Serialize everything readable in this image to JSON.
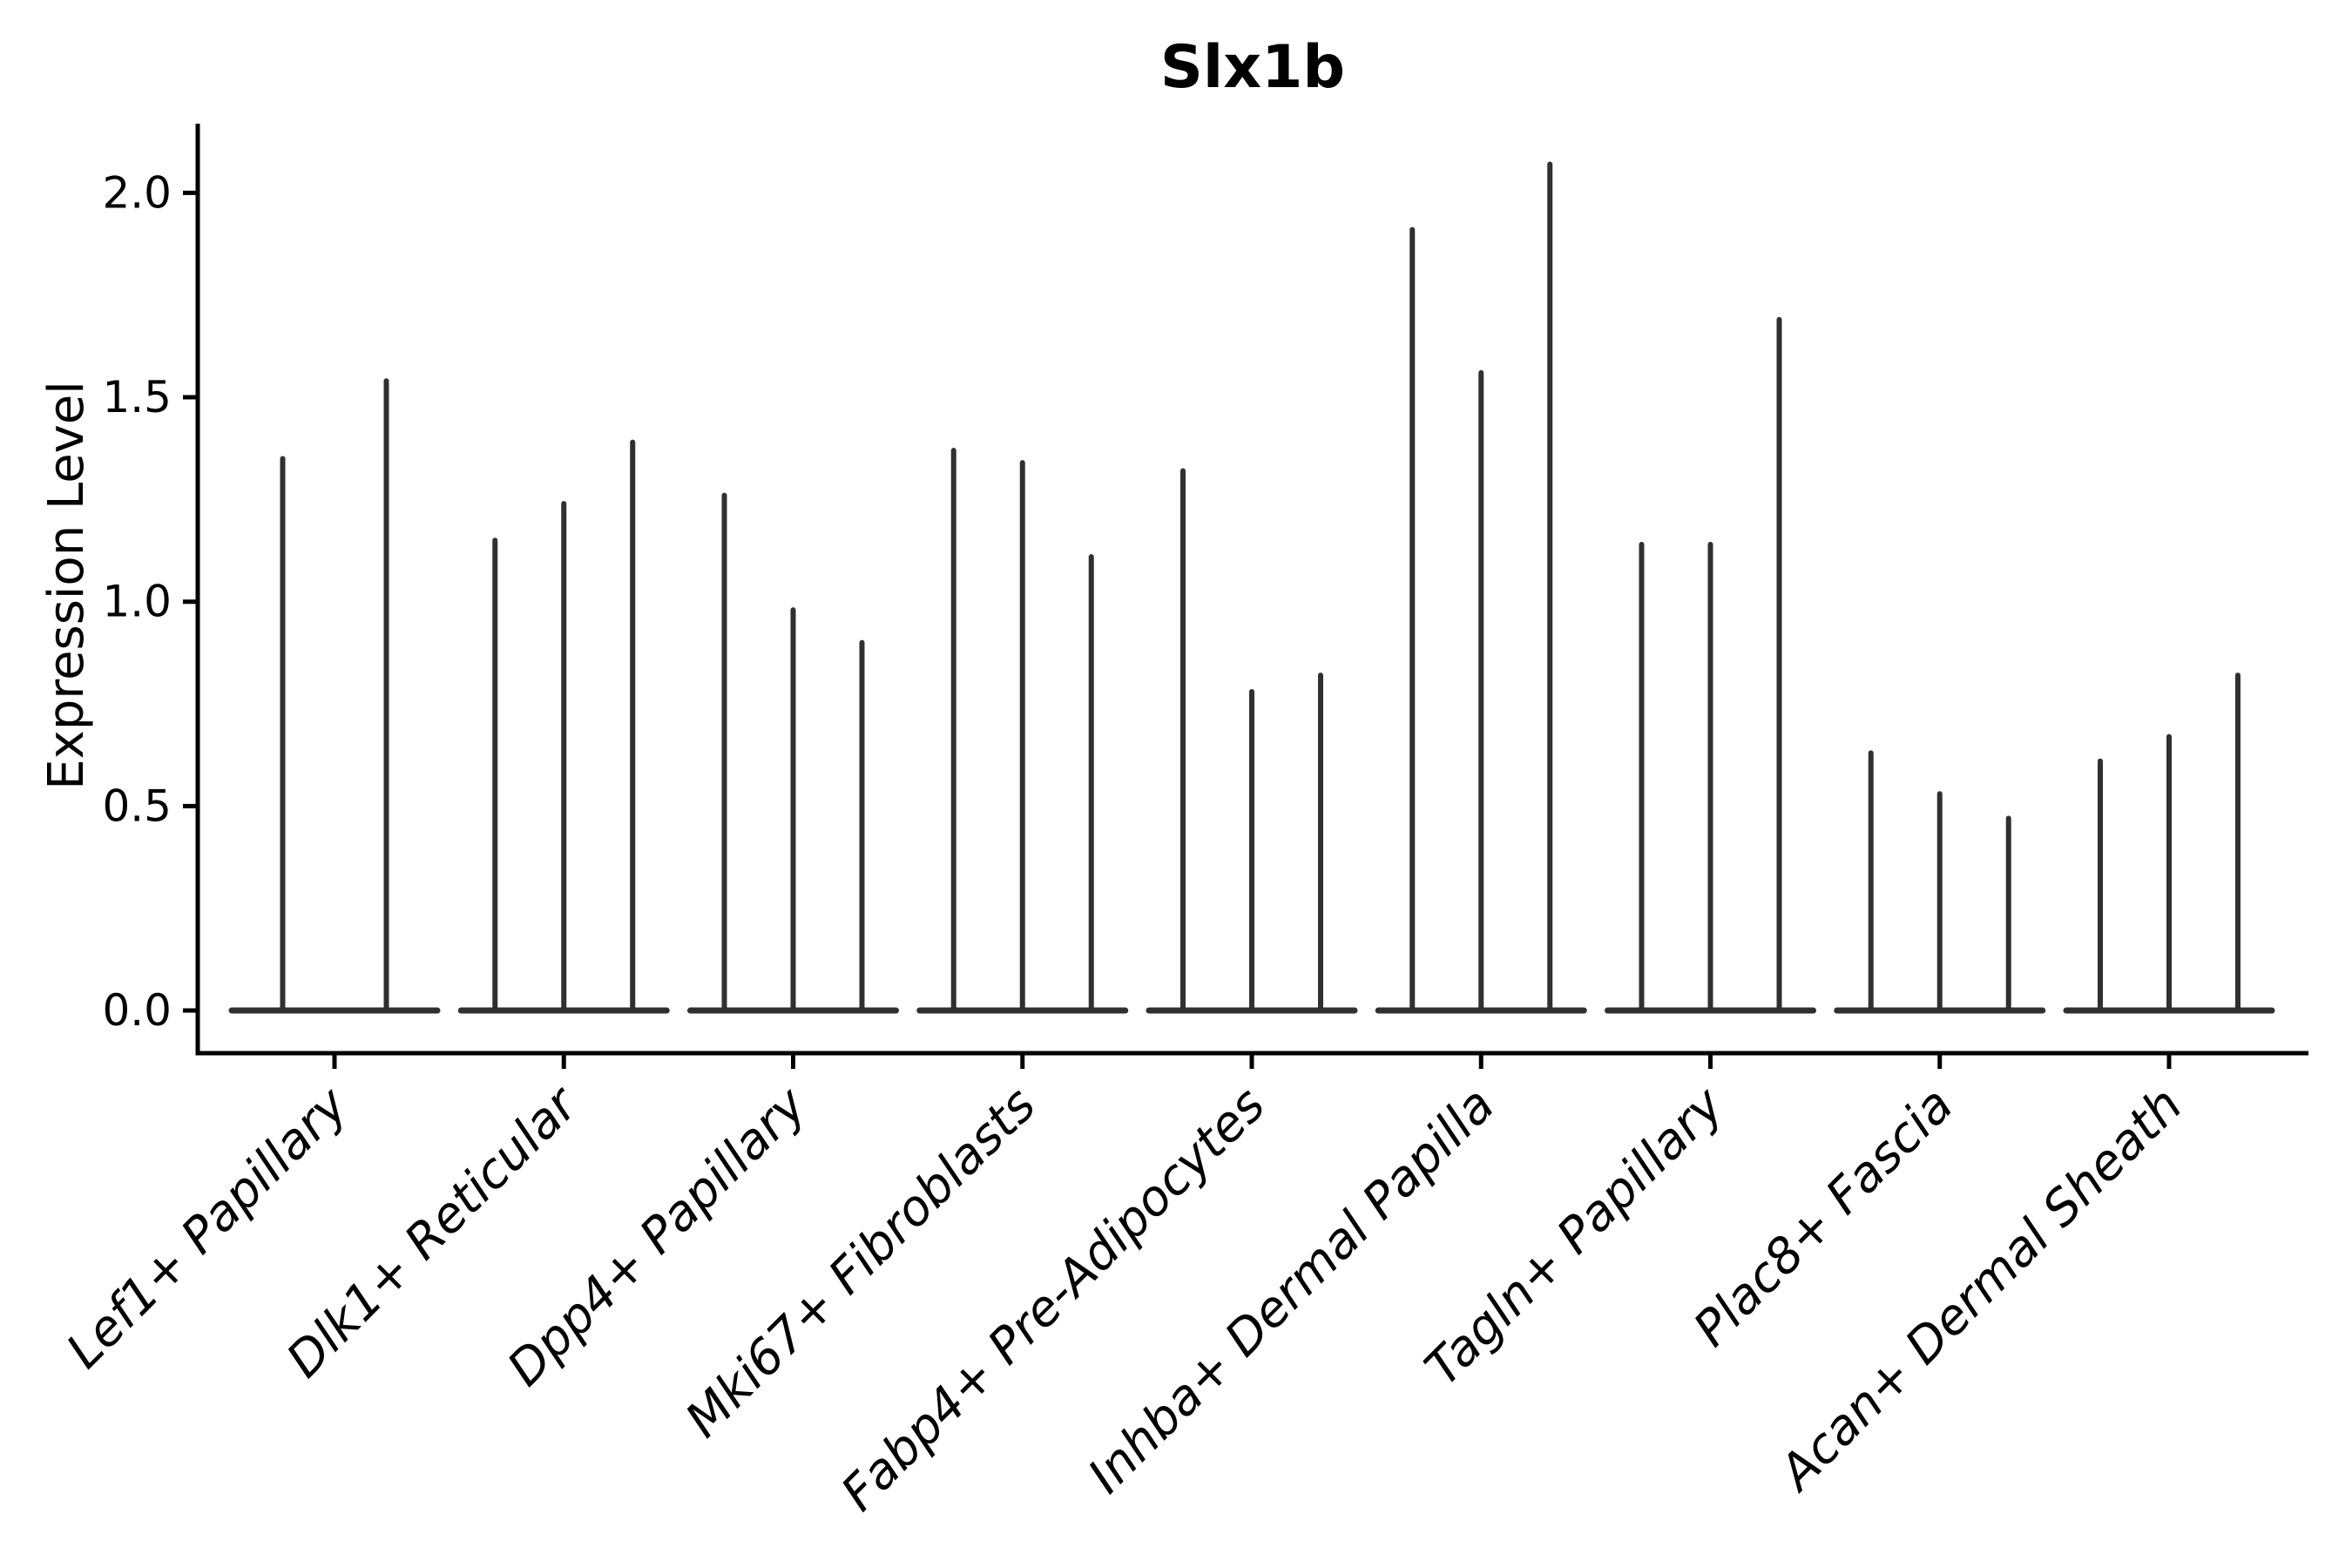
{
  "title": "Slx1b",
  "ylabel": "Expression Level",
  "colors": {
    "violin": "#303030",
    "axis": "#000000",
    "background": "#ffffff"
  },
  "chart_data": {
    "type": "violin",
    "title": "Slx1b",
    "xlabel": "",
    "ylabel": "Expression Level",
    "ylim": [
      0,
      2.17
    ],
    "yticks": [
      "0.0",
      "0.5",
      "1.0",
      "1.5",
      "2.0"
    ],
    "grid": false,
    "legend_position": "none",
    "style_note": "extremely narrow violins: dense flat mass at 0 plus thin vertical spike up to the max expression value per violin",
    "categories": [
      "Lef1+ Papillary",
      "Dlk1+ Reticular",
      "Dpp4+ Papillary",
      "Mki67+ Fibroblasts",
      "Fabp4+ Pre-Adipocytes",
      "Inhba+ Dermal Papilla",
      "Tagln+ Papillary",
      "Plac8+ Fascia",
      "Acan+ Dermal Sheath"
    ],
    "groups": [
      {
        "label": "Lef1+ Papillary",
        "spike_max_values": [
          1.35,
          1.54
        ]
      },
      {
        "label": "Dlk1+ Reticular",
        "spike_max_values": [
          1.15,
          1.24,
          1.39
        ]
      },
      {
        "label": "Dpp4+ Papillary",
        "spike_max_values": [
          1.26,
          0.98,
          0.9
        ]
      },
      {
        "label": "Mki67+ Fibroblasts",
        "spike_max_values": [
          1.37,
          1.34,
          1.11
        ]
      },
      {
        "label": "Fabp4+ Pre-Adipocytes",
        "spike_max_values": [
          1.32,
          0.78,
          0.82
        ]
      },
      {
        "label": "Inhba+ Dermal Papilla",
        "spike_max_values": [
          1.91,
          1.56,
          2.07
        ]
      },
      {
        "label": "Tagln+ Papillary",
        "spike_max_values": [
          1.14,
          1.14,
          1.69
        ]
      },
      {
        "label": "Plac8+ Fascia",
        "spike_max_values": [
          0.63,
          0.53,
          0.47
        ]
      },
      {
        "label": "Acan+ Dermal Sheath",
        "spike_max_values": [
          0.61,
          0.67,
          0.82
        ]
      }
    ]
  }
}
